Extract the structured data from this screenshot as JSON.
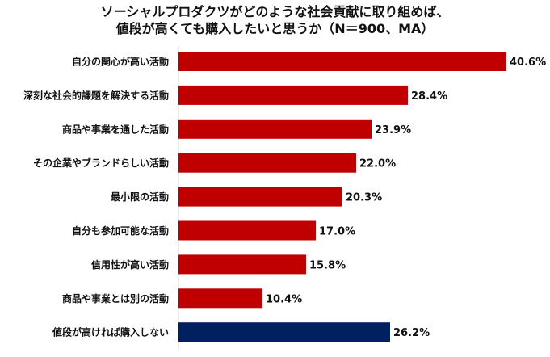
{
  "chart_data": {
    "type": "bar",
    "orientation": "horizontal",
    "title_line1": "ソーシャルプロダクツがどのような社会貢献に取り組めば、",
    "title_line2": "値段が高くても購入したいと思うか（N＝900、MA）",
    "categories": [
      "自分の関心が高い活動",
      "深刻な社会的課題を解決する活動",
      "商品や事業を通した活動",
      "その企業やブランドらしい活動",
      "最小限の活動",
      "自分も参加可能な活動",
      "信用性が高い活動",
      "商品や事業とは別の活動",
      "値段が高ければ購入しない"
    ],
    "values": [
      40.6,
      28.4,
      23.9,
      22.0,
      20.3,
      17.0,
      15.8,
      10.4,
      26.2
    ],
    "labels": [
      "40.6%",
      "28.4%",
      "23.9%",
      "22.0%",
      "20.3%",
      "17.0%",
      "15.8%",
      "10.4%",
      "26.2%"
    ],
    "colors": [
      "#C00000",
      "#C00000",
      "#C00000",
      "#C00000",
      "#C00000",
      "#C00000",
      "#C00000",
      "#C00000",
      "#002060"
    ],
    "unit": "%",
    "xlim": [
      0,
      45
    ],
    "grid": false,
    "legend": "none"
  }
}
